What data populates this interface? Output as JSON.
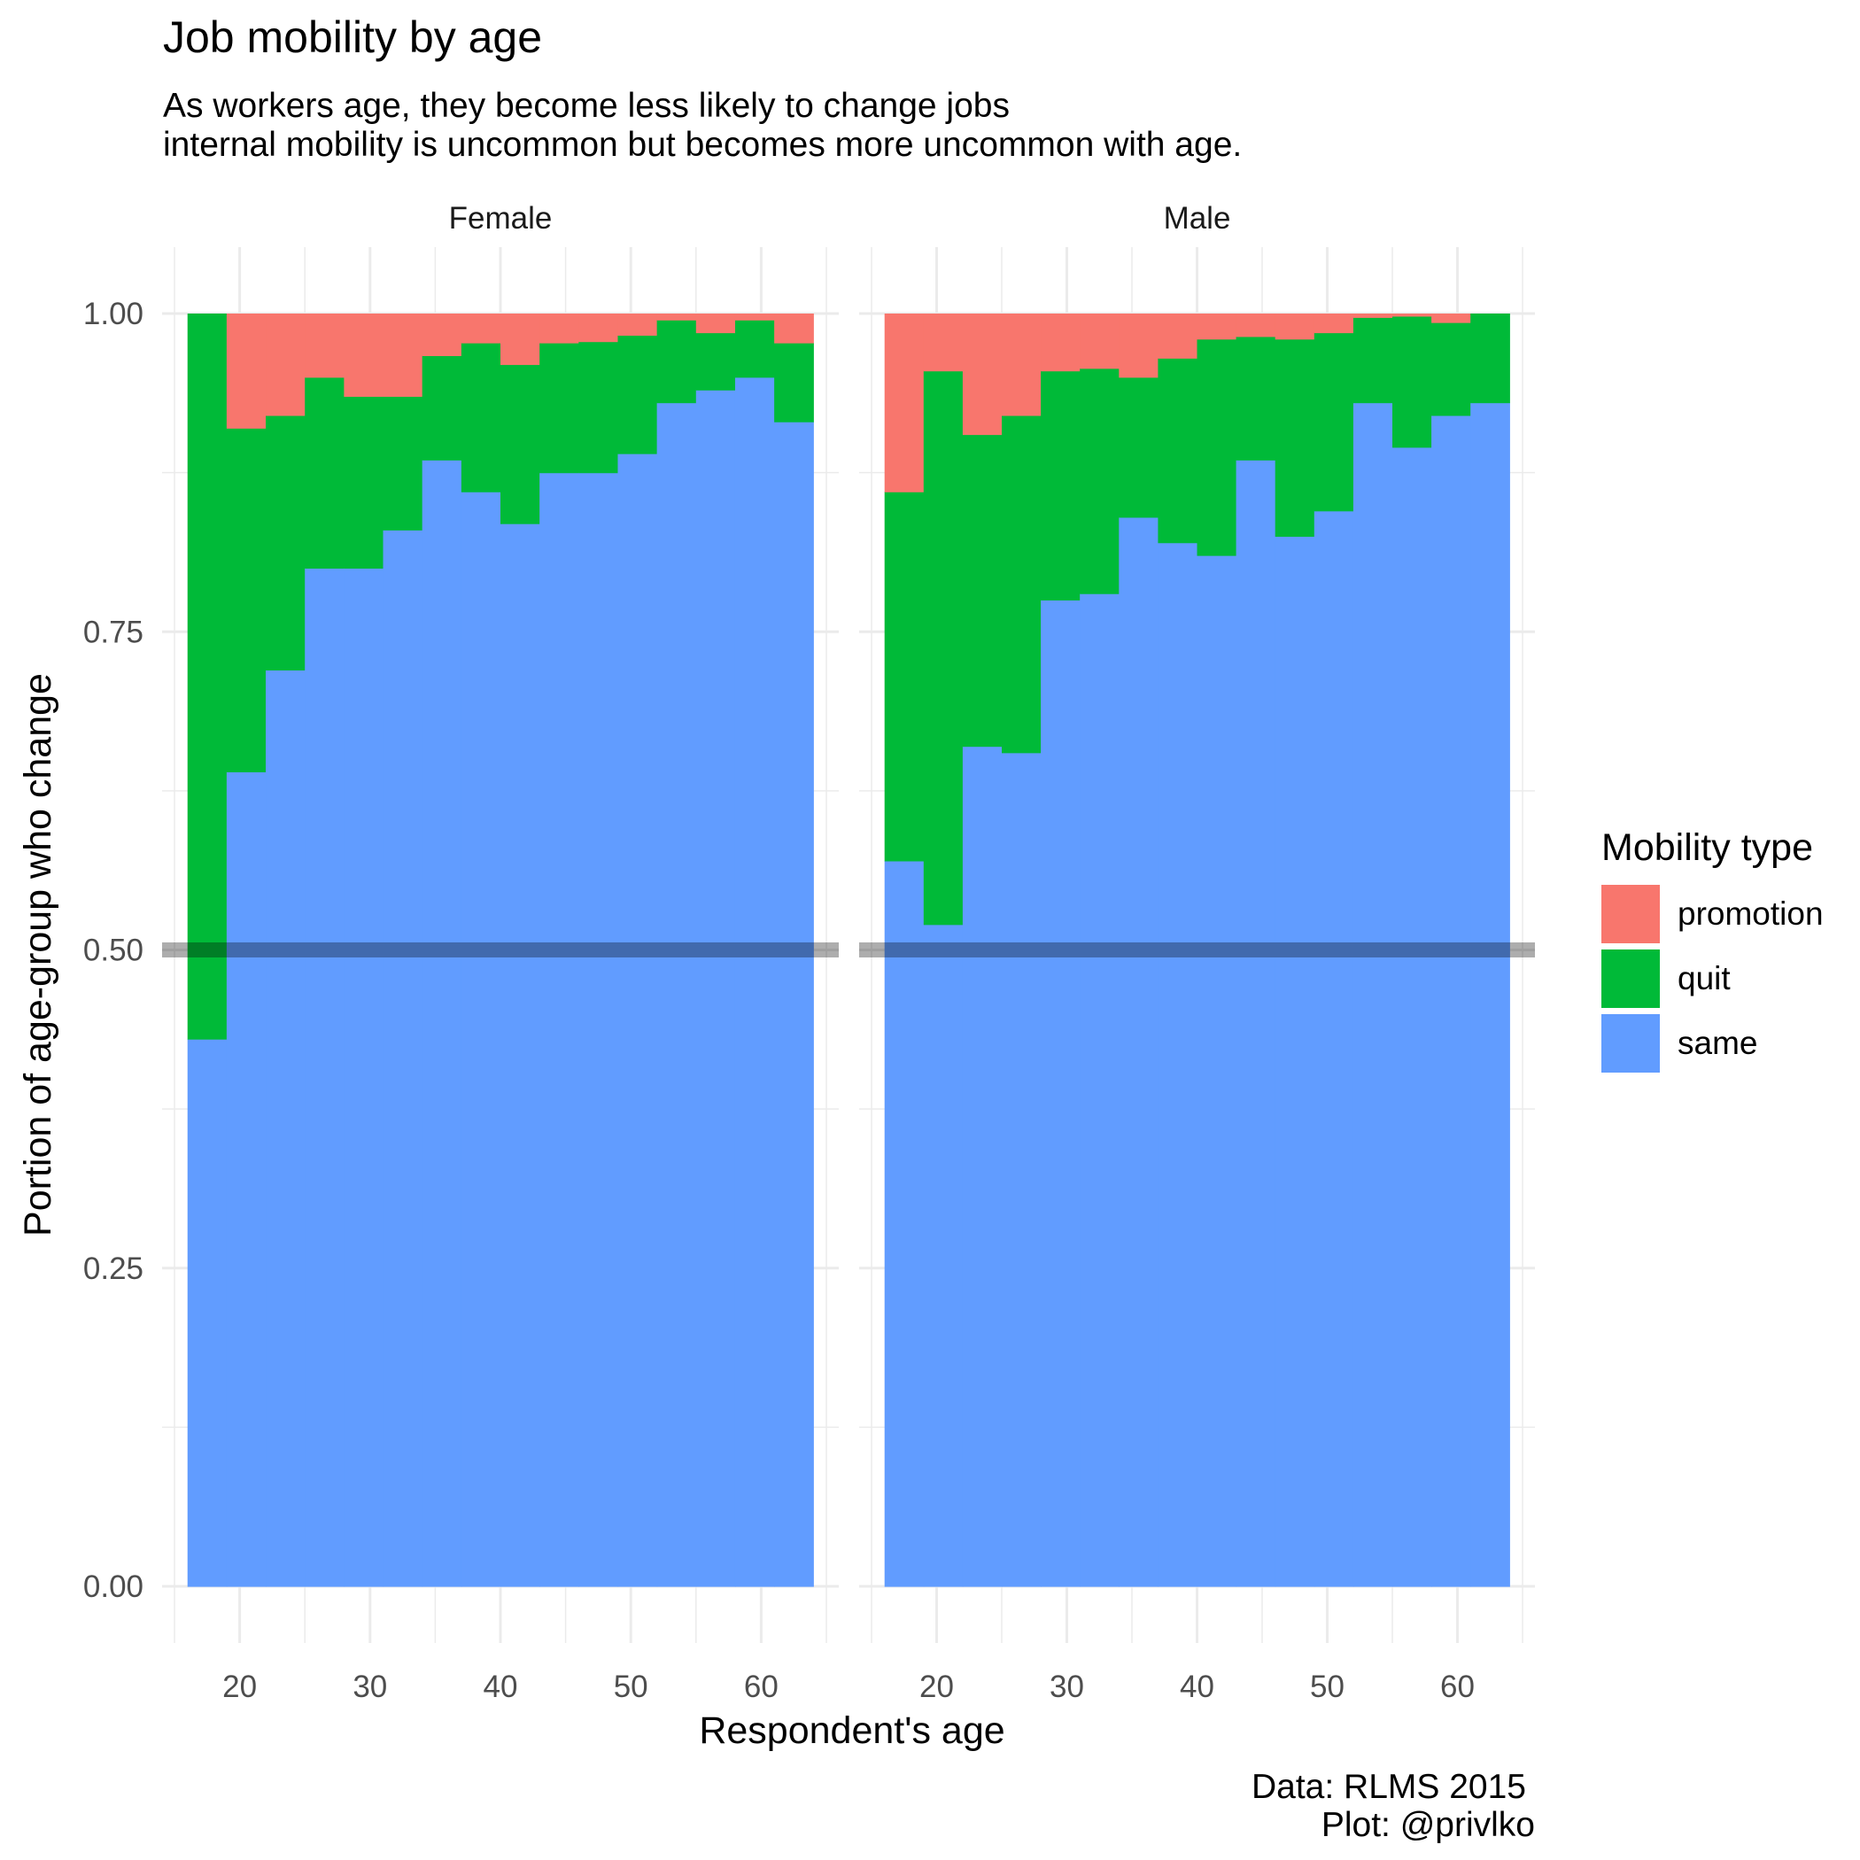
{
  "chart_data": {
    "type": "bar",
    "stacked": true,
    "title": "Job mobility by age",
    "subtitle": [
      "As workers age, they become less likely to change jobs",
      "internal mobility is uncommon but becomes more uncommon with age."
    ],
    "xlabel": "Respondent's age",
    "ylabel": "Portion of age-group who change",
    "caption": [
      "Data: RLMS 2015",
      "Plot: @privlko"
    ],
    "xlim": [
      15,
      65
    ],
    "ylim": [
      0,
      1
    ],
    "x_ticks": [
      20,
      30,
      40,
      50,
      60
    ],
    "y_ticks": [
      "0.00",
      "0.25",
      "0.50",
      "0.75",
      "1.00"
    ],
    "y_tick_values": [
      0,
      0.25,
      0.5,
      0.75,
      1.0
    ],
    "reference_line": 0.5,
    "legend": {
      "title": "Mobility type",
      "position": "right",
      "items": [
        "promotion",
        "quit",
        "same"
      ]
    },
    "colors": {
      "promotion": "#F8766D",
      "quit": "#00BA38",
      "same": "#619CFF"
    },
    "bin_width": 3,
    "bin_centers": [
      17.5,
      20.5,
      23.5,
      26.5,
      29.5,
      32.5,
      35.5,
      38.5,
      41.5,
      44.5,
      47.5,
      50.5,
      53.5,
      56.5,
      59.5,
      62.5
    ],
    "panels": [
      {
        "name": "Female",
        "same": [
          0.43,
          0.64,
          0.72,
          0.8,
          0.8,
          0.83,
          0.885,
          0.86,
          0.835,
          0.875,
          0.875,
          0.89,
          0.93,
          0.94,
          0.95,
          0.915
        ],
        "quit": [
          0.57,
          0.27,
          0.2,
          0.15,
          0.135,
          0.105,
          0.082,
          0.117,
          0.125,
          0.102,
          0.103,
          0.093,
          0.065,
          0.045,
          0.045,
          0.062
        ],
        "promotion": [
          0.0,
          0.09,
          0.08,
          0.05,
          0.065,
          0.065,
          0.033,
          0.023,
          0.04,
          0.023,
          0.022,
          0.017,
          0.005,
          0.015,
          0.005,
          0.023
        ]
      },
      {
        "name": "Male",
        "same": [
          0.57,
          0.52,
          0.66,
          0.655,
          0.775,
          0.78,
          0.84,
          0.82,
          0.81,
          0.885,
          0.825,
          0.845,
          0.93,
          0.895,
          0.92,
          0.93
        ],
        "quit": [
          0.29,
          0.435,
          0.245,
          0.265,
          0.18,
          0.177,
          0.11,
          0.145,
          0.17,
          0.097,
          0.155,
          0.14,
          0.067,
          0.103,
          0.073,
          0.07
        ],
        "promotion": [
          0.14,
          0.045,
          0.095,
          0.08,
          0.045,
          0.043,
          0.05,
          0.035,
          0.02,
          0.018,
          0.02,
          0.015,
          0.003,
          0.002,
          0.007,
          0.0
        ]
      }
    ]
  }
}
